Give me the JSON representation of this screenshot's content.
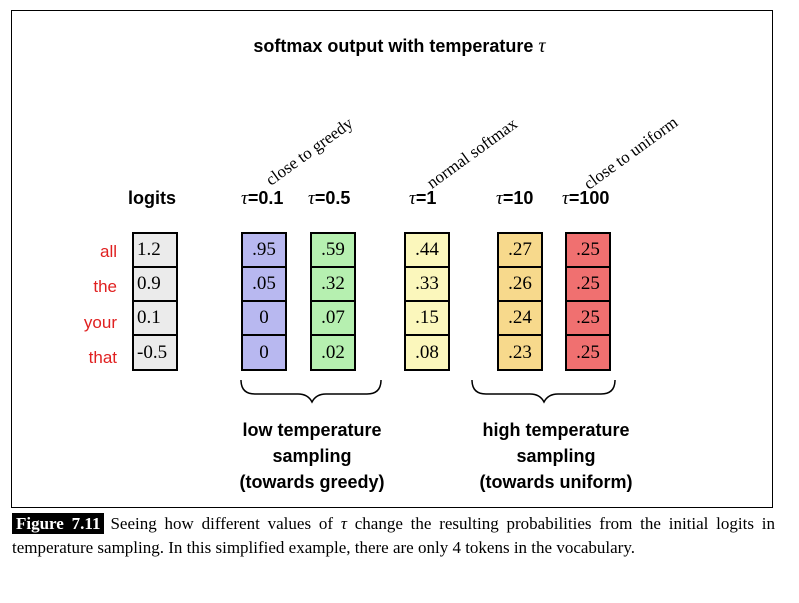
{
  "figure": {
    "title_prefix": "softmax output with temperature ",
    "title_symbol": "τ",
    "annotations": {
      "greedy": "close to greedy",
      "normal": "normal softmax",
      "uniform": "close to uniform"
    },
    "logits_header": "logits",
    "tokens": [
      "all",
      "the",
      "your",
      "that"
    ],
    "logits": [
      "1.2",
      "0.9",
      "0.1",
      "-0.5"
    ],
    "columns": [
      {
        "tau": "τ",
        "rest": "=0.1",
        "color": "#b8b8f0",
        "values": [
          ".95",
          ".05",
          "0",
          "0"
        ]
      },
      {
        "tau": "τ",
        "rest": "=0.5",
        "color": "#b6f0b0",
        "values": [
          ".59",
          ".32",
          ".07",
          ".02"
        ]
      },
      {
        "tau": "τ",
        "rest": "=1",
        "color": "#fbf7bc",
        "values": [
          ".44",
          ".33",
          ".15",
          ".08"
        ]
      },
      {
        "tau": "τ",
        "rest": "=10",
        "color": "#f7d98c",
        "values": [
          ".27",
          ".26",
          ".24",
          ".23"
        ]
      },
      {
        "tau": "τ",
        "rest": "=100",
        "color": "#f07070",
        "values": [
          ".25",
          ".25",
          ".25",
          ".25"
        ]
      }
    ],
    "low_label": [
      "low temperature",
      "sampling",
      "(towards greedy)"
    ],
    "high_label": [
      "high temperature",
      "sampling",
      "(towards uniform)"
    ],
    "logits_color": "#ebebeb",
    "token_color": "#e02020"
  },
  "caption": {
    "label": "Figure 7.11",
    "text_before": "Seeing how different values of ",
    "symbol": "τ",
    "text_after": " change the resulting probabilities from the initial logits in temperature sampling. In this simplified example, there are only 4 tokens in the vocabulary."
  }
}
